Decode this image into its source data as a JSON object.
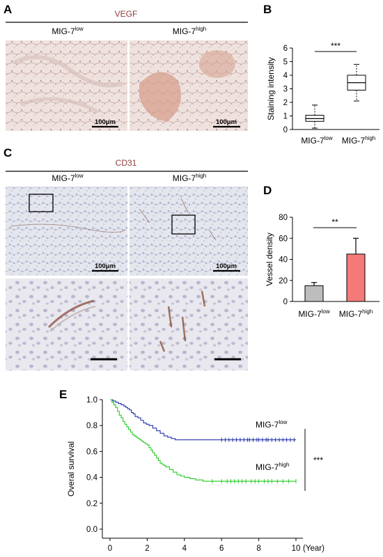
{
  "panels": {
    "A": {
      "letter": "A",
      "stain": "VEGF",
      "group_low": {
        "base": "MIG-7",
        "sup": "low"
      },
      "group_high": {
        "base": "MIG-7",
        "sup": "high"
      },
      "scale_bar": "100μm"
    },
    "B": {
      "letter": "B",
      "significance": "***",
      "xtick_low": {
        "base": "MIG-7",
        "sup": "low"
      },
      "xtick_high": {
        "base": "MIG-7",
        "sup": "high"
      }
    },
    "C": {
      "letter": "C",
      "stain": "CD31",
      "group_low": {
        "base": "MIG-7",
        "sup": "low"
      },
      "group_high": {
        "base": "MIG-7",
        "sup": "high"
      },
      "scale_bar": "100μm"
    },
    "D": {
      "letter": "D",
      "significance": "**",
      "xtick_low": {
        "base": "MIG-7",
        "sup": "low"
      },
      "xtick_high": {
        "base": "MIG-7",
        "sup": "high"
      }
    },
    "E": {
      "letter": "E",
      "significance": "***",
      "label_low": {
        "base": "MIG-7",
        "sup": "low"
      },
      "label_high": {
        "base": "MIG-7",
        "sup": "high"
      }
    }
  },
  "chart_data": [
    {
      "id": "B",
      "type": "box",
      "ylabel": "Staining intensity",
      "ylim": [
        0,
        6
      ],
      "yticks": [
        0,
        1,
        2,
        3,
        4,
        5,
        6
      ],
      "boxes": [
        {
          "group": "MIG-7low",
          "min": 0.1,
          "q1": 0.6,
          "median": 0.8,
          "q3": 1.05,
          "max": 1.8
        },
        {
          "group": "MIG-7high",
          "min": 2.1,
          "q1": 2.9,
          "median": 3.45,
          "q3": 4.0,
          "max": 4.8
        }
      ],
      "box_colors": [
        "#ffffff",
        "#ffffff"
      ]
    },
    {
      "id": "D",
      "type": "bar",
      "ylabel": "Vessel density",
      "ylim": [
        0,
        80
      ],
      "yticks": [
        0,
        20,
        40,
        60,
        80
      ],
      "categories": [
        "MIG-7low",
        "MIG-7high"
      ],
      "values": [
        15,
        45
      ],
      "errors": [
        3,
        15
      ],
      "colors": [
        "#bdbdbd",
        "#f47a7a"
      ]
    },
    {
      "id": "E",
      "type": "line",
      "ylabel": "Overal survival",
      "xunit": "(Year)",
      "xlim": [
        0,
        10
      ],
      "ylim": [
        0,
        1.0
      ],
      "xticks": [
        0,
        2,
        4,
        6,
        8,
        10
      ],
      "yticks": [
        0,
        0.2,
        0.4,
        0.6,
        0.8,
        1.0
      ],
      "series": [
        {
          "name": "MIG-7low",
          "color": "#2233aa",
          "points": [
            [
              0,
              1.0
            ],
            [
              0.15,
              0.99
            ],
            [
              0.3,
              0.98
            ],
            [
              0.45,
              0.97
            ],
            [
              0.6,
              0.96
            ],
            [
              0.75,
              0.95
            ],
            [
              0.85,
              0.94
            ],
            [
              0.95,
              0.93
            ],
            [
              1.05,
              0.92
            ],
            [
              1.15,
              0.9
            ],
            [
              1.25,
              0.89
            ],
            [
              1.35,
              0.87
            ],
            [
              1.5,
              0.86
            ],
            [
              1.65,
              0.84
            ],
            [
              1.8,
              0.82
            ],
            [
              1.95,
              0.81
            ],
            [
              2.1,
              0.8
            ],
            [
              2.3,
              0.78
            ],
            [
              2.5,
              0.76
            ],
            [
              2.7,
              0.74
            ],
            [
              2.9,
              0.72
            ],
            [
              3.1,
              0.71
            ],
            [
              3.3,
              0.7
            ],
            [
              3.5,
              0.69
            ],
            [
              10,
              0.69
            ]
          ],
          "censors": [
            6.0,
            6.2,
            6.4,
            6.6,
            6.8,
            7.0,
            7.2,
            7.4,
            7.5,
            7.7,
            7.9,
            8.0,
            8.2,
            8.4,
            8.5,
            8.7,
            8.9,
            9.1,
            9.3,
            9.5,
            9.7,
            9.9
          ]
        },
        {
          "name": "MIG-7high",
          "color": "#22cc22",
          "points": [
            [
              0,
              1.0
            ],
            [
              0.1,
              0.98
            ],
            [
              0.2,
              0.96
            ],
            [
              0.3,
              0.94
            ],
            [
              0.4,
              0.91
            ],
            [
              0.5,
              0.88
            ],
            [
              0.6,
              0.86
            ],
            [
              0.7,
              0.83
            ],
            [
              0.8,
              0.81
            ],
            [
              0.9,
              0.79
            ],
            [
              1.0,
              0.77
            ],
            [
              1.1,
              0.75
            ],
            [
              1.2,
              0.73
            ],
            [
              1.3,
              0.72
            ],
            [
              1.4,
              0.71
            ],
            [
              1.5,
              0.7
            ],
            [
              1.6,
              0.69
            ],
            [
              1.7,
              0.68
            ],
            [
              1.8,
              0.67
            ],
            [
              1.9,
              0.66
            ],
            [
              2.0,
              0.65
            ],
            [
              2.1,
              0.63
            ],
            [
              2.2,
              0.61
            ],
            [
              2.3,
              0.59
            ],
            [
              2.4,
              0.57
            ],
            [
              2.5,
              0.55
            ],
            [
              2.6,
              0.53
            ],
            [
              2.7,
              0.51
            ],
            [
              2.8,
              0.5
            ],
            [
              2.9,
              0.49
            ],
            [
              3.0,
              0.48
            ],
            [
              3.2,
              0.46
            ],
            [
              3.4,
              0.44
            ],
            [
              3.6,
              0.42
            ],
            [
              3.8,
              0.41
            ],
            [
              4.0,
              0.4
            ],
            [
              4.3,
              0.39
            ],
            [
              4.6,
              0.38
            ],
            [
              5.0,
              0.37
            ],
            [
              10,
              0.37
            ]
          ],
          "censors": [
            5.5,
            6.0,
            6.3,
            6.5,
            6.7,
            6.9,
            7.1,
            7.3,
            7.6,
            7.8,
            8.0,
            8.3,
            8.5,
            8.7,
            9.0,
            9.3,
            9.6,
            10.0
          ]
        }
      ]
    }
  ]
}
